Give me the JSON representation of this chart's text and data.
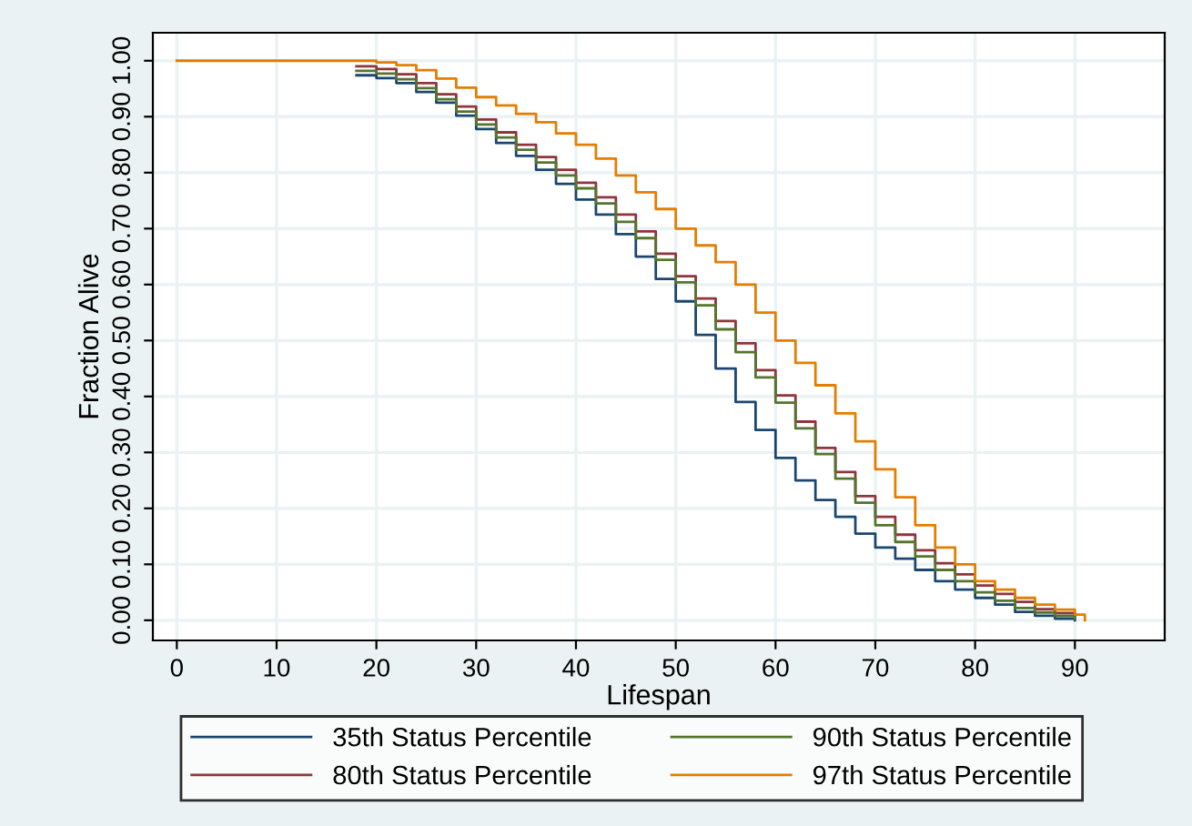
{
  "chart_data": {
    "type": "step",
    "xlabel": "Lifespan",
    "ylabel": "Fraction Alive",
    "x": [
      0,
      16,
      18,
      20,
      22,
      24,
      26,
      28,
      30,
      32,
      34,
      36,
      38,
      40,
      42,
      44,
      46,
      48,
      50,
      52,
      54,
      56,
      58,
      60,
      62,
      64,
      66,
      68,
      70,
      72,
      74,
      76,
      78,
      80,
      82,
      84,
      86,
      88,
      90,
      91
    ],
    "series": [
      {
        "name": "35th Status Percentile",
        "color": "#1a476f",
        "values": [
          null,
          null,
          0.974,
          0.969,
          0.96,
          0.944,
          0.925,
          0.902,
          0.878,
          0.853,
          0.83,
          0.805,
          0.78,
          0.752,
          0.725,
          0.69,
          0.65,
          0.61,
          0.57,
          0.51,
          0.45,
          0.39,
          0.34,
          0.29,
          0.25,
          0.215,
          0.185,
          0.155,
          0.13,
          0.11,
          0.09,
          0.07,
          0.055,
          0.04,
          0.028,
          0.015,
          0.008,
          0.003,
          0,
          null
        ]
      },
      {
        "name": "80th Status Percentile",
        "color": "#90353b",
        "values": [
          null,
          null,
          0.99,
          0.985,
          0.976,
          0.96,
          0.94,
          0.918,
          0.895,
          0.872,
          0.85,
          0.828,
          0.805,
          0.782,
          0.756,
          0.725,
          0.695,
          0.655,
          0.615,
          0.575,
          0.535,
          0.495,
          0.447,
          0.402,
          0.355,
          0.308,
          0.265,
          0.222,
          0.185,
          0.153,
          0.125,
          0.102,
          0.082,
          0.062,
          0.047,
          0.033,
          0.02,
          0.013,
          0.006,
          null
        ]
      },
      {
        "name": "90th Status Percentile",
        "color": "#55752f",
        "values": [
          null,
          null,
          0.982,
          0.977,
          0.967,
          0.951,
          0.931,
          0.909,
          0.886,
          0.863,
          0.841,
          0.818,
          0.795,
          0.772,
          0.745,
          0.712,
          0.683,
          0.644,
          0.604,
          0.563,
          0.52,
          0.479,
          0.434,
          0.389,
          0.343,
          0.297,
          0.253,
          0.21,
          0.17,
          0.14,
          0.114,
          0.09,
          0.07,
          0.05,
          0.035,
          0.022,
          0.014,
          0.008,
          0.003,
          null
        ]
      },
      {
        "name": "97th Status Percentile",
        "color": "#e37e00",
        "values": [
          1,
          1,
          1,
          0.997,
          0.992,
          0.983,
          0.968,
          0.952,
          0.935,
          0.92,
          0.905,
          0.89,
          0.87,
          0.85,
          0.825,
          0.795,
          0.765,
          0.735,
          0.7,
          0.67,
          0.64,
          0.6,
          0.55,
          0.5,
          0.46,
          0.42,
          0.37,
          0.32,
          0.27,
          0.22,
          0.17,
          0.13,
          0.1,
          0.07,
          0.055,
          0.04,
          0.028,
          0.019,
          0.01,
          0
        ]
      }
    ],
    "xlim": [
      -2.4,
      99
    ],
    "ylim": [
      -0.036,
      1.05
    ],
    "xticks": [
      0,
      10,
      20,
      30,
      40,
      50,
      60,
      70,
      80,
      90
    ],
    "yticks": [
      {
        "value": 0,
        "label": "0.00"
      },
      {
        "value": 0.1,
        "label": "0.10"
      },
      {
        "value": 0.2,
        "label": "0.20"
      },
      {
        "value": 0.3,
        "label": "0.30"
      },
      {
        "value": 0.4,
        "label": "0.40"
      },
      {
        "value": 0.5,
        "label": "0.50"
      },
      {
        "value": 0.6,
        "label": "0.60"
      },
      {
        "value": 0.7,
        "label": "0.70"
      },
      {
        "value": 0.8,
        "label": "0.80"
      },
      {
        "value": 0.9,
        "label": "0.90"
      },
      {
        "value": 1,
        "label": "1.00"
      }
    ],
    "grid": true,
    "legend": "bottom",
    "line_style": "solid",
    "marker": "none"
  }
}
